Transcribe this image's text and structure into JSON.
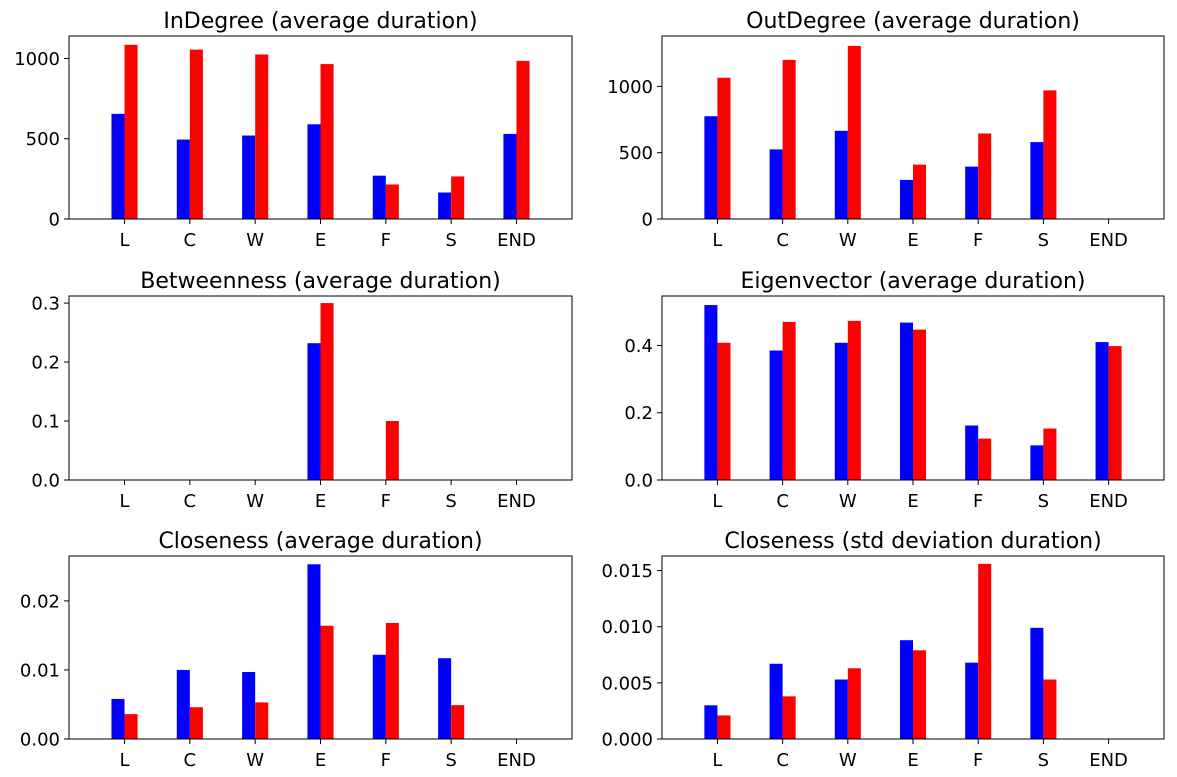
{
  "figure": {
    "colors": {
      "series_a": "#0000ff",
      "series_b": "#ff0000"
    }
  },
  "chart_data": [
    {
      "type": "bar",
      "title": "InDegree (average duration)",
      "categories": [
        "L",
        "C",
        "W",
        "E",
        "F",
        "S",
        "END"
      ],
      "ylim": [
        0,
        1140
      ],
      "yticks": [
        0,
        500,
        1000
      ],
      "ytick_labels": [
        "0",
        "500",
        "1000"
      ],
      "grid": false,
      "series": [
        {
          "color": "#0000ff",
          "values": [
            655,
            495,
            520,
            590,
            270,
            165,
            530
          ]
        },
        {
          "color": "#ff0000",
          "values": [
            1085,
            1055,
            1025,
            965,
            215,
            265,
            985
          ]
        }
      ]
    },
    {
      "type": "bar",
      "title": "OutDegree (average duration)",
      "categories": [
        "L",
        "C",
        "W",
        "E",
        "F",
        "S",
        "END"
      ],
      "ylim": [
        0,
        1380
      ],
      "yticks": [
        0,
        500,
        1000
      ],
      "ytick_labels": [
        "0",
        "500",
        "1000"
      ],
      "grid": false,
      "series": [
        {
          "color": "#0000ff",
          "values": [
            775,
            525,
            665,
            295,
            395,
            580,
            0
          ]
        },
        {
          "color": "#ff0000",
          "values": [
            1065,
            1200,
            1305,
            410,
            645,
            970,
            0
          ]
        }
      ]
    },
    {
      "type": "bar",
      "title": "Betweenness (average duration)",
      "categories": [
        "L",
        "C",
        "W",
        "E",
        "F",
        "S",
        "END"
      ],
      "ylim": [
        0,
        0.312
      ],
      "yticks": [
        0,
        0.1,
        0.2,
        0.3
      ],
      "ytick_labels": [
        "0.0",
        "0.1",
        "0.2",
        "0.3"
      ],
      "grid": false,
      "series": [
        {
          "color": "#0000ff",
          "values": [
            0,
            0,
            0,
            0.232,
            0,
            0,
            0
          ]
        },
        {
          "color": "#ff0000",
          "values": [
            0,
            0,
            0,
            0.3,
            0.1,
            0,
            0
          ]
        }
      ]
    },
    {
      "type": "bar",
      "title": "Eigenvector (average duration)",
      "categories": [
        "L",
        "C",
        "W",
        "E",
        "F",
        "S",
        "END"
      ],
      "ylim": [
        0,
        0.547
      ],
      "yticks": [
        0,
        0.2,
        0.4
      ],
      "ytick_labels": [
        "0.0",
        "0.2",
        "0.4"
      ],
      "grid": false,
      "series": [
        {
          "color": "#0000ff",
          "values": [
            0.52,
            0.385,
            0.408,
            0.468,
            0.162,
            0.103,
            0.41
          ]
        },
        {
          "color": "#ff0000",
          "values": [
            0.408,
            0.47,
            0.473,
            0.447,
            0.123,
            0.153,
            0.398
          ]
        }
      ]
    },
    {
      "type": "bar",
      "title": "Closeness (average duration)",
      "categories": [
        "L",
        "C",
        "W",
        "E",
        "F",
        "S",
        "END"
      ],
      "ylim": [
        0,
        0.0265
      ],
      "yticks": [
        0,
        0.01,
        0.02
      ],
      "ytick_labels": [
        "0.00",
        "0.01",
        "0.02"
      ],
      "grid": false,
      "series": [
        {
          "color": "#0000ff",
          "values": [
            0.0058,
            0.01,
            0.0097,
            0.0253,
            0.0122,
            0.0117,
            0
          ]
        },
        {
          "color": "#ff0000",
          "values": [
            0.0036,
            0.0046,
            0.0053,
            0.0164,
            0.0168,
            0.0049,
            0
          ]
        }
      ]
    },
    {
      "type": "bar",
      "title": "Closeness (std deviation duration)",
      "categories": [
        "L",
        "C",
        "W",
        "E",
        "F",
        "S",
        "END"
      ],
      "ylim": [
        0,
        0.0163
      ],
      "yticks": [
        0,
        0.005,
        0.01,
        0.015
      ],
      "ytick_labels": [
        "0.000",
        "0.005",
        "0.010",
        "0.015"
      ],
      "grid": false,
      "series": [
        {
          "color": "#0000ff",
          "values": [
            0.003,
            0.0067,
            0.0053,
            0.0088,
            0.0068,
            0.0099,
            0
          ]
        },
        {
          "color": "#ff0000",
          "values": [
            0.0021,
            0.0038,
            0.0063,
            0.0079,
            0.0156,
            0.0053,
            0
          ]
        }
      ]
    }
  ]
}
